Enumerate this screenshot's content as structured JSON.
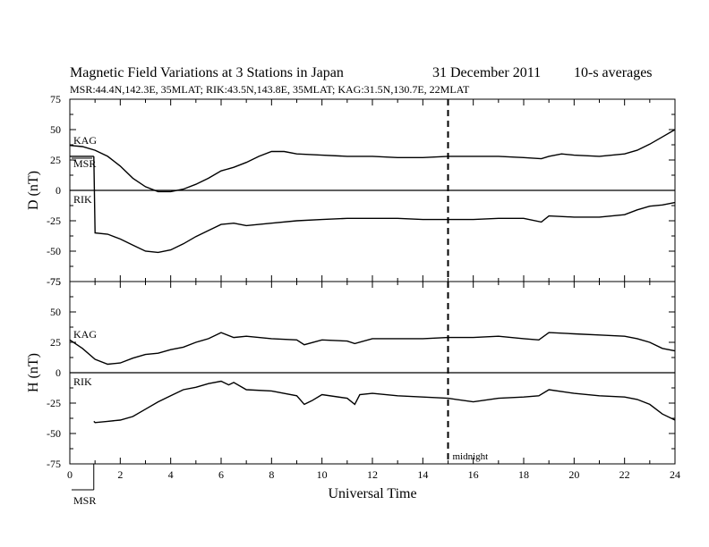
{
  "header": {
    "title": "Magnetic Field Variations at 3 Stations in Japan",
    "date": "31 December 2011",
    "averaging": "10-s averages",
    "stations_line": "MSR:44.4N,142.3E, 35MLAT;  RIK:43.5N,143.8E, 35MLAT;  KAG:31.5N,130.7E, 22MLAT"
  },
  "chart_data": [
    {
      "type": "line",
      "panel": "D",
      "ylabel": "D (nT)",
      "ylim": [
        -75,
        75
      ],
      "yticks": [
        75,
        50,
        25,
        0,
        -25,
        -50,
        -75
      ],
      "xlim": [
        0,
        24
      ],
      "midnight_ut": 15,
      "series": [
        {
          "name": "KAG",
          "x": [
            0,
            0.5,
            1,
            1.5,
            2,
            2.5,
            3,
            3.5,
            4,
            4.5,
            5,
            5.5,
            6,
            6.5,
            7,
            7.5,
            8,
            8.5,
            9,
            10,
            11,
            12,
            13,
            14,
            15,
            16,
            17,
            18,
            18.7,
            19,
            19.5,
            20,
            21,
            22,
            22.5,
            23,
            23.5,
            24
          ],
          "values": [
            37,
            36,
            33,
            28,
            20,
            10,
            3,
            -1,
            -1,
            1,
            5,
            10,
            16,
            19,
            23,
            28,
            32,
            32,
            30,
            29,
            28,
            28,
            27,
            27,
            28,
            28,
            28,
            27,
            26,
            28,
            30,
            29,
            28,
            30,
            33,
            38,
            44,
            50
          ]
        },
        {
          "name": "MSR",
          "x": [
            0,
            0.5,
            0.95
          ],
          "values": [
            28,
            28,
            28
          ]
        },
        {
          "name": "RIK",
          "x": [
            0.95,
            1,
            1.5,
            2,
            2.5,
            3,
            3.5,
            4,
            4.5,
            5,
            5.5,
            6,
            6.5,
            7,
            8,
            9,
            10,
            11,
            12,
            13,
            14,
            15,
            16,
            17,
            18,
            18.7,
            19,
            20,
            21,
            22,
            22.5,
            23,
            23.5,
            24
          ],
          "values": [
            28,
            -35,
            -36,
            -40,
            -45,
            -50,
            -51,
            -49,
            -44,
            -38,
            -33,
            -28,
            -27,
            -29,
            -27,
            -25,
            -24,
            -23,
            -23,
            -23,
            -24,
            -24,
            -24,
            -23,
            -23,
            -26,
            -21,
            -22,
            -22,
            -20,
            -16,
            -13,
            -12,
            -10
          ]
        }
      ],
      "labels": {
        "kag": "KAG",
        "msr": "MSR",
        "rik": "RIK"
      }
    },
    {
      "type": "line",
      "panel": "H",
      "ylabel": "H (nT)",
      "xlabel": "Universal Time",
      "ylim": [
        -75,
        75
      ],
      "yticks": [
        75,
        50,
        25,
        0,
        -25,
        -50,
        -75
      ],
      "xlim": [
        0,
        24
      ],
      "xticks": [
        0,
        2,
        4,
        6,
        8,
        10,
        12,
        14,
        16,
        18,
        20,
        22,
        24
      ],
      "midnight_ut": 15,
      "midnight_label": "midnight",
      "series": [
        {
          "name": "KAG",
          "x": [
            0,
            0.5,
            1,
            1.5,
            2,
            2.5,
            3,
            3.5,
            4,
            4.5,
            5,
            5.5,
            6,
            6.5,
            7,
            8,
            9,
            9.3,
            10,
            11,
            11.3,
            12,
            13,
            14,
            15,
            16,
            17,
            18,
            18.6,
            19,
            20,
            21,
            22,
            22.5,
            23,
            23.5,
            24
          ],
          "values": [
            27,
            20,
            11,
            7,
            8,
            12,
            15,
            16,
            19,
            21,
            25,
            28,
            33,
            29,
            30,
            28,
            27,
            23,
            27,
            26,
            24,
            28,
            28,
            28,
            29,
            29,
            30,
            28,
            27,
            33,
            32,
            31,
            30,
            28,
            25,
            20,
            18
          ]
        },
        {
          "name": "RIK",
          "x": [
            0.95,
            1,
            1.5,
            2,
            2.5,
            3,
            3.5,
            4,
            4.5,
            5,
            5.5,
            6,
            6.3,
            6.5,
            7,
            8,
            9,
            9.3,
            9.6,
            10,
            11,
            11.3,
            11.5,
            12,
            13,
            14,
            15,
            16,
            17,
            18,
            18.6,
            19,
            20,
            21,
            22,
            22.5,
            23,
            23.5,
            24
          ],
          "values": [
            -40,
            -41,
            -40,
            -39,
            -36,
            -30,
            -24,
            -19,
            -14,
            -12,
            -9,
            -7,
            -10,
            -8,
            -14,
            -15,
            -19,
            -26,
            -23,
            -18,
            -21,
            -26,
            -18,
            -17,
            -19,
            -20,
            -21,
            -24,
            -21,
            -20,
            -19,
            -14,
            -17,
            -19,
            -20,
            -22,
            -26,
            -34,
            -39
          ]
        }
      ],
      "labels": {
        "kag": "KAG",
        "rik": "RIK",
        "msr": "MSR"
      }
    }
  ]
}
